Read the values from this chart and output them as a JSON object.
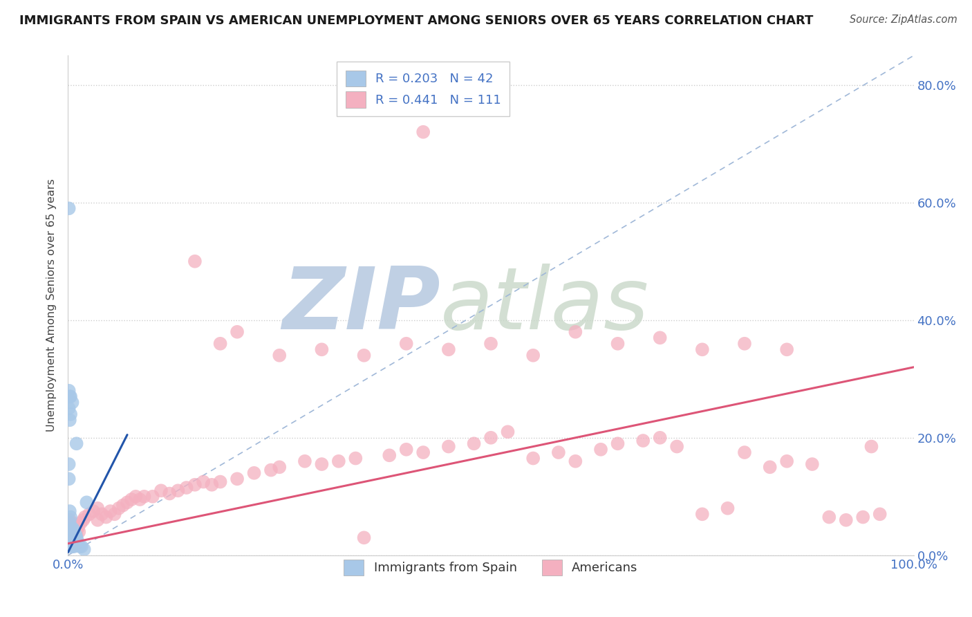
{
  "title": "IMMIGRANTS FROM SPAIN VS AMERICAN UNEMPLOYMENT AMONG SENIORS OVER 65 YEARS CORRELATION CHART",
  "source": "Source: ZipAtlas.com",
  "ylabel": "Unemployment Among Seniors over 65 years",
  "ytick_labels": [
    "0.0%",
    "20.0%",
    "40.0%",
    "60.0%",
    "80.0%"
  ],
  "ytick_values": [
    0.0,
    0.2,
    0.4,
    0.6,
    0.8
  ],
  "xlim": [
    0.0,
    1.0
  ],
  "ylim": [
    0.0,
    0.85
  ],
  "blue_face": "#a8c8e8",
  "blue_edge": "none",
  "pink_face": "#f4b0c0",
  "pink_edge": "none",
  "blue_line_color": "#2255aa",
  "pink_line_color": "#dd5577",
  "diag_color": "#a0b8d8",
  "axis_color": "#4472c4",
  "grid_color": "#cccccc",
  "background": "#ffffff",
  "legend_text_color": "#4472c4",
  "watermark_zip_color": "#c0d0e4",
  "watermark_atlas_color": "#c8d8c8",
  "title_color": "#1a1a1a",
  "source_color": "#555555",
  "blue_scatter_x": [
    0.001,
    0.001,
    0.001,
    0.002,
    0.002,
    0.002,
    0.003,
    0.003,
    0.003,
    0.004,
    0.004,
    0.004,
    0.005,
    0.005,
    0.005,
    0.005,
    0.006,
    0.006,
    0.006,
    0.007,
    0.007,
    0.007,
    0.008,
    0.008,
    0.009,
    0.009,
    0.01,
    0.01,
    0.011,
    0.012,
    0.014,
    0.016,
    0.019,
    0.001,
    0.001,
    0.002,
    0.002,
    0.003,
    0.003,
    0.005,
    0.01,
    0.022
  ],
  "blue_scatter_y": [
    0.59,
    0.155,
    0.13,
    0.075,
    0.055,
    0.04,
    0.065,
    0.035,
    0.02,
    0.04,
    0.025,
    0.015,
    0.045,
    0.03,
    0.025,
    0.015,
    0.045,
    0.03,
    0.02,
    0.04,
    0.025,
    0.015,
    0.035,
    0.02,
    0.035,
    0.02,
    0.03,
    0.018,
    0.025,
    0.018,
    0.015,
    0.015,
    0.01,
    0.28,
    0.25,
    0.27,
    0.23,
    0.27,
    0.24,
    0.26,
    0.19,
    0.09
  ],
  "pink_scatter_x": [
    0.001,
    0.001,
    0.001,
    0.001,
    0.001,
    0.002,
    0.002,
    0.002,
    0.002,
    0.003,
    0.003,
    0.003,
    0.003,
    0.004,
    0.004,
    0.004,
    0.005,
    0.005,
    0.005,
    0.005,
    0.006,
    0.006,
    0.007,
    0.007,
    0.008,
    0.008,
    0.009,
    0.01,
    0.01,
    0.011,
    0.012,
    0.013,
    0.015,
    0.018,
    0.02,
    0.025,
    0.03,
    0.035,
    0.035,
    0.04,
    0.045,
    0.05,
    0.055,
    0.06,
    0.065,
    0.07,
    0.075,
    0.08,
    0.085,
    0.09,
    0.1,
    0.11,
    0.12,
    0.13,
    0.14,
    0.15,
    0.16,
    0.17,
    0.18,
    0.2,
    0.22,
    0.24,
    0.25,
    0.28,
    0.3,
    0.32,
    0.34,
    0.35,
    0.38,
    0.4,
    0.42,
    0.45,
    0.48,
    0.5,
    0.52,
    0.55,
    0.58,
    0.6,
    0.63,
    0.65,
    0.68,
    0.7,
    0.72,
    0.75,
    0.78,
    0.8,
    0.83,
    0.85,
    0.88,
    0.9,
    0.92,
    0.94,
    0.95,
    0.96,
    0.42,
    0.15,
    0.2,
    0.18,
    0.25,
    0.3,
    0.35,
    0.4,
    0.45,
    0.5,
    0.55,
    0.6,
    0.65,
    0.7,
    0.75,
    0.8,
    0.85
  ],
  "pink_scatter_y": [
    0.05,
    0.04,
    0.035,
    0.03,
    0.02,
    0.06,
    0.045,
    0.035,
    0.025,
    0.055,
    0.04,
    0.03,
    0.02,
    0.05,
    0.038,
    0.025,
    0.055,
    0.042,
    0.032,
    0.018,
    0.048,
    0.035,
    0.045,
    0.03,
    0.042,
    0.028,
    0.04,
    0.05,
    0.035,
    0.045,
    0.048,
    0.04,
    0.055,
    0.06,
    0.065,
    0.07,
    0.075,
    0.06,
    0.08,
    0.07,
    0.065,
    0.075,
    0.07,
    0.08,
    0.085,
    0.09,
    0.095,
    0.1,
    0.095,
    0.1,
    0.1,
    0.11,
    0.105,
    0.11,
    0.115,
    0.12,
    0.125,
    0.12,
    0.125,
    0.13,
    0.14,
    0.145,
    0.15,
    0.16,
    0.155,
    0.16,
    0.165,
    0.03,
    0.17,
    0.18,
    0.175,
    0.185,
    0.19,
    0.2,
    0.21,
    0.165,
    0.175,
    0.16,
    0.18,
    0.19,
    0.195,
    0.2,
    0.185,
    0.07,
    0.08,
    0.175,
    0.15,
    0.16,
    0.155,
    0.065,
    0.06,
    0.065,
    0.185,
    0.07,
    0.72,
    0.5,
    0.38,
    0.36,
    0.34,
    0.35,
    0.34,
    0.36,
    0.35,
    0.36,
    0.34,
    0.38,
    0.36,
    0.37,
    0.35,
    0.36,
    0.35
  ],
  "blue_line_x": [
    0.0,
    0.07
  ],
  "blue_line_y": [
    0.005,
    0.205
  ],
  "pink_line_x": [
    0.0,
    1.0
  ],
  "pink_line_y": [
    0.02,
    0.32
  ],
  "diag_line_x": [
    0.0,
    1.0
  ],
  "diag_line_y": [
    0.0,
    0.85
  ]
}
